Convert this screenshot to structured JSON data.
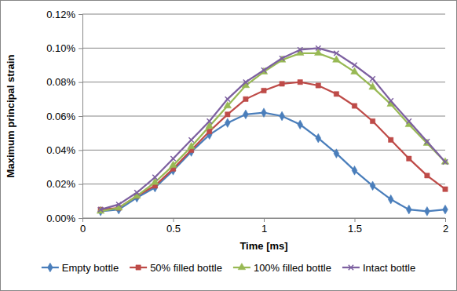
{
  "chart_data": {
    "type": "line",
    "x_label": "Time [ms]",
    "y_label": "Maximum principal strain",
    "x": [
      0.1,
      0.2,
      0.3,
      0.4,
      0.5,
      0.6,
      0.7,
      0.8,
      0.9,
      1.0,
      1.1,
      1.2,
      1.3,
      1.4,
      1.5,
      1.6,
      1.7,
      1.8,
      1.9,
      2.0
    ],
    "xlim": [
      0,
      2
    ],
    "xticks": [
      0,
      0.5,
      1,
      1.5,
      2
    ],
    "ylim": [
      0,
      0.12
    ],
    "yticks": [
      {
        "value": 0,
        "label": "0.00%"
      },
      {
        "value": 0.02,
        "label": "0.02%"
      },
      {
        "value": 0.04,
        "label": "0.04%"
      },
      {
        "value": 0.06,
        "label": "0.06%"
      },
      {
        "value": 0.08,
        "label": "0.08%"
      },
      {
        "value": 0.1,
        "label": "0.10%"
      },
      {
        "value": 0.12,
        "label": "0.12%"
      }
    ],
    "grid": true,
    "legend": "bottom",
    "series": [
      {
        "name": "Empty bottle",
        "color": "#4a7ebb",
        "marker": "diamond",
        "values": [
          0.004,
          0.005,
          0.012,
          0.018,
          0.028,
          0.039,
          0.049,
          0.056,
          0.061,
          0.062,
          0.06,
          0.055,
          0.047,
          0.038,
          0.028,
          0.019,
          0.011,
          0.005,
          0.004,
          0.005
        ]
      },
      {
        "name": "50% filled bottle",
        "color": "#be4b48",
        "marker": "square",
        "values": [
          0.005,
          0.006,
          0.013,
          0.019,
          0.029,
          0.04,
          0.051,
          0.061,
          0.07,
          0.075,
          0.079,
          0.08,
          0.078,
          0.073,
          0.066,
          0.057,
          0.046,
          0.035,
          0.025,
          0.017
        ]
      },
      {
        "name": "100% filled bottle",
        "color": "#98b954",
        "marker": "triangle",
        "values": [
          0.004,
          0.006,
          0.013,
          0.021,
          0.031,
          0.042,
          0.054,
          0.066,
          0.078,
          0.086,
          0.093,
          0.097,
          0.097,
          0.093,
          0.086,
          0.077,
          0.067,
          0.055,
          0.044,
          0.033
        ]
      },
      {
        "name": "Intact bottle",
        "color": "#7d60a0",
        "marker": "x",
        "values": [
          0.005,
          0.008,
          0.015,
          0.024,
          0.035,
          0.046,
          0.057,
          0.07,
          0.08,
          0.087,
          0.094,
          0.099,
          0.1,
          0.097,
          0.09,
          0.082,
          0.069,
          0.057,
          0.045,
          0.033
        ]
      }
    ]
  }
}
